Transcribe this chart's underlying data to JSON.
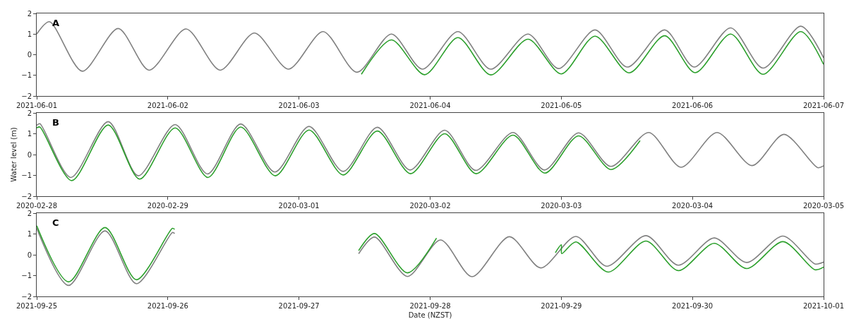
{
  "chart_data": [
    {
      "type": "line",
      "annotations": [
        "A"
      ],
      "xlim": [
        "2021-06-01",
        "2021-06-07"
      ],
      "xticks": [
        "2021-06-01",
        "2021-06-02",
        "2021-06-03",
        "2021-06-04",
        "2021-06-05",
        "2021-06-06",
        "2021-06-07"
      ],
      "ylim": [
        -2,
        2
      ],
      "yticks": [
        -2,
        -1,
        0,
        1,
        2
      ],
      "marker": "none",
      "line_style": "solid",
      "series": [
        {
          "color": "#808080",
          "x": [
            "2021-06-01T00:00",
            "2021-06-01T02:20",
            "2021-06-01T08:20",
            "2021-06-01T14:55",
            "2021-06-01T20:35",
            "2021-06-02T03:20",
            "2021-06-02T09:35",
            "2021-06-02T15:50",
            "2021-06-02T22:05",
            "2021-06-03T04:25",
            "2021-06-03T10:35",
            "2021-06-03T16:55",
            "2021-06-03T22:35",
            "2021-06-04T05:05",
            "2021-06-04T11:05",
            "2021-06-04T17:55",
            "2021-06-04T23:30",
            "2021-06-05T06:10",
            "2021-06-05T12:05",
            "2021-06-05T18:55",
            "2021-06-06T00:20",
            "2021-06-06T07:00",
            "2021-06-06T12:55",
            "2021-06-06T19:50",
            "2021-06-07T00:00"
          ],
          "values": [
            1.0,
            1.6,
            -0.8,
            1.27,
            -0.75,
            1.25,
            -0.75,
            1.05,
            -0.7,
            1.12,
            -0.85,
            1.0,
            -0.7,
            1.12,
            -0.7,
            1.0,
            -0.67,
            1.2,
            -0.6,
            1.2,
            -0.6,
            1.3,
            -0.65,
            1.38,
            -0.15
          ]
        },
        {
          "color": "#2ca02c",
          "x": [
            "2021-06-03T11:25",
            "2021-06-03T16:55",
            "2021-06-03T23:00",
            "2021-06-04T05:05",
            "2021-06-04T11:05",
            "2021-06-04T17:55",
            "2021-06-05T00:00",
            "2021-06-05T06:10",
            "2021-06-05T12:25",
            "2021-06-05T18:55",
            "2021-06-06T00:30",
            "2021-06-06T07:00",
            "2021-06-06T12:55",
            "2021-06-06T19:50",
            "2021-06-07T00:00"
          ],
          "values": [
            -0.95,
            0.72,
            -0.97,
            0.83,
            -0.98,
            0.75,
            -0.93,
            0.9,
            -0.88,
            0.92,
            -0.87,
            1.0,
            -0.95,
            1.12,
            -0.47
          ]
        }
      ]
    },
    {
      "type": "line",
      "annotations": [
        "B"
      ],
      "ylabel": "Water level (m)",
      "xlim": [
        "2020-02-28",
        "2020-03-05"
      ],
      "xticks": [
        "2020-02-28",
        "2020-02-29",
        "2020-03-01",
        "2020-03-02",
        "2020-03-03",
        "2020-03-04",
        "2020-03-05"
      ],
      "ylim": [
        -2,
        2
      ],
      "yticks": [
        -2,
        -1,
        0,
        1,
        2
      ],
      "marker": "none",
      "line_style": "solid",
      "series": [
        {
          "color": "#808080",
          "x": [
            "2020-02-28T00:00",
            "2020-02-28T00:35",
            "2020-02-28T06:15",
            "2020-02-28T13:05",
            "2020-02-28T18:35",
            "2020-02-29T01:20",
            "2020-02-29T07:15",
            "2020-02-29T13:20",
            "2020-02-29T19:35",
            "2020-03-01T01:50",
            "2020-03-01T08:05",
            "2020-03-01T14:20",
            "2020-03-01T20:20",
            "2020-03-02T02:40",
            "2020-03-02T08:20",
            "2020-03-02T15:10",
            "2020-03-02T20:55",
            "2020-03-03T03:10",
            "2020-03-03T09:05",
            "2020-03-03T16:00",
            "2020-03-03T21:55",
            "2020-03-04T04:30",
            "2020-03-04T10:55",
            "2020-03-04T16:45",
            "2020-03-04T22:55",
            "2020-03-05T00:00"
          ],
          "values": [
            1.4,
            1.48,
            -1.1,
            1.58,
            -1.02,
            1.44,
            -0.93,
            1.47,
            -0.84,
            1.35,
            -0.81,
            1.31,
            -0.74,
            1.17,
            -0.76,
            1.06,
            -0.74,
            1.04,
            -0.57,
            1.06,
            -0.61,
            1.06,
            -0.53,
            0.97,
            -0.63,
            -0.54
          ]
        },
        {
          "color": "#2ca02c",
          "x": [
            "2020-02-28T00:00",
            "2020-02-28T00:35",
            "2020-02-28T06:25",
            "2020-02-28T13:05",
            "2020-02-28T18:50",
            "2020-02-29T01:20",
            "2020-02-29T07:20",
            "2020-02-29T13:20",
            "2020-02-29T19:40",
            "2020-03-01T01:50",
            "2020-03-01T08:05",
            "2020-03-01T14:20",
            "2020-03-01T20:25",
            "2020-03-02T02:40",
            "2020-03-02T08:25",
            "2020-03-02T15:10",
            "2020-03-02T21:00",
            "2020-03-03T03:10",
            "2020-03-03T09:05",
            "2020-03-03T14:25"
          ],
          "values": [
            1.28,
            1.32,
            -1.25,
            1.42,
            -1.18,
            1.28,
            -1.1,
            1.32,
            -1.02,
            1.18,
            -0.98,
            1.13,
            -0.92,
            1.0,
            -0.92,
            0.93,
            -0.89,
            0.9,
            -0.72,
            0.67
          ]
        }
      ]
    },
    {
      "type": "line",
      "annotations": [
        "C"
      ],
      "xlabel": "Date (NZST)",
      "xlim": [
        "2021-09-25",
        "2021-10-01"
      ],
      "xticks": [
        "2021-09-25",
        "2021-09-26",
        "2021-09-27",
        "2021-09-28",
        "2021-09-29",
        "2021-09-30",
        "2021-10-01"
      ],
      "ylim": [
        -2,
        2
      ],
      "yticks": [
        -2,
        -1,
        0,
        1,
        2
      ],
      "marker": "none",
      "line_style": "solid",
      "series": [
        {
          "color": "#808080",
          "x": [
            "2021-09-25T00:00",
            "2021-09-25T05:50",
            "2021-09-25T12:30",
            "2021-09-25T18:15",
            "2021-09-26T00:50",
            "2021-09-26T01:15",
            "2021-09-26T12:00",
            "2021-09-27T10:55",
            "2021-09-27T13:50",
            "2021-09-27T19:50",
            "2021-09-28T01:55",
            "2021-09-28T07:40",
            "2021-09-28T14:30",
            "2021-09-28T20:15",
            "2021-09-29T02:40",
            "2021-09-29T08:20",
            "2021-09-29T15:30",
            "2021-09-29T21:25",
            "2021-09-30T04:00",
            "2021-09-30T09:55",
            "2021-09-30T16:35",
            "2021-09-30T22:25",
            "2021-10-01T00:00"
          ],
          "values": [
            1.28,
            -1.47,
            1.15,
            -1.39,
            1.07,
            1.02,
            null,
            0.05,
            0.85,
            -1.04,
            0.71,
            -1.05,
            0.87,
            -0.63,
            0.88,
            -0.55,
            0.92,
            -0.5,
            0.81,
            -0.37,
            0.9,
            -0.44,
            -0.35
          ]
        },
        {
          "color": "#2ca02c",
          "x": [
            "2021-09-25T00:00",
            "2021-09-25T05:50",
            "2021-09-25T12:30",
            "2021-09-25T18:15",
            "2021-09-26T00:50",
            "2021-09-26T01:15",
            "2021-09-26T12:00",
            "2021-09-27T10:55",
            "2021-09-27T13:50",
            "2021-09-27T19:50",
            "2021-09-28T01:10",
            "2021-09-28T12:00",
            "2021-09-28T22:55",
            "2021-09-29T00:00",
            "2021-09-29T00:05",
            "2021-09-29T02:40",
            "2021-09-29T08:35",
            "2021-09-29T15:30",
            "2021-09-29T21:25",
            "2021-09-30T04:00",
            "2021-09-30T09:55",
            "2021-09-30T16:35",
            "2021-09-30T22:25",
            "2021-10-01T00:00"
          ],
          "values": [
            1.4,
            -1.3,
            1.31,
            -1.2,
            1.27,
            1.22,
            null,
            0.2,
            1.02,
            -0.87,
            0.8,
            null,
            0.1,
            0.48,
            0.06,
            0.62,
            -0.83,
            0.66,
            -0.76,
            0.55,
            -0.66,
            0.63,
            -0.72,
            -0.59
          ]
        }
      ]
    }
  ]
}
